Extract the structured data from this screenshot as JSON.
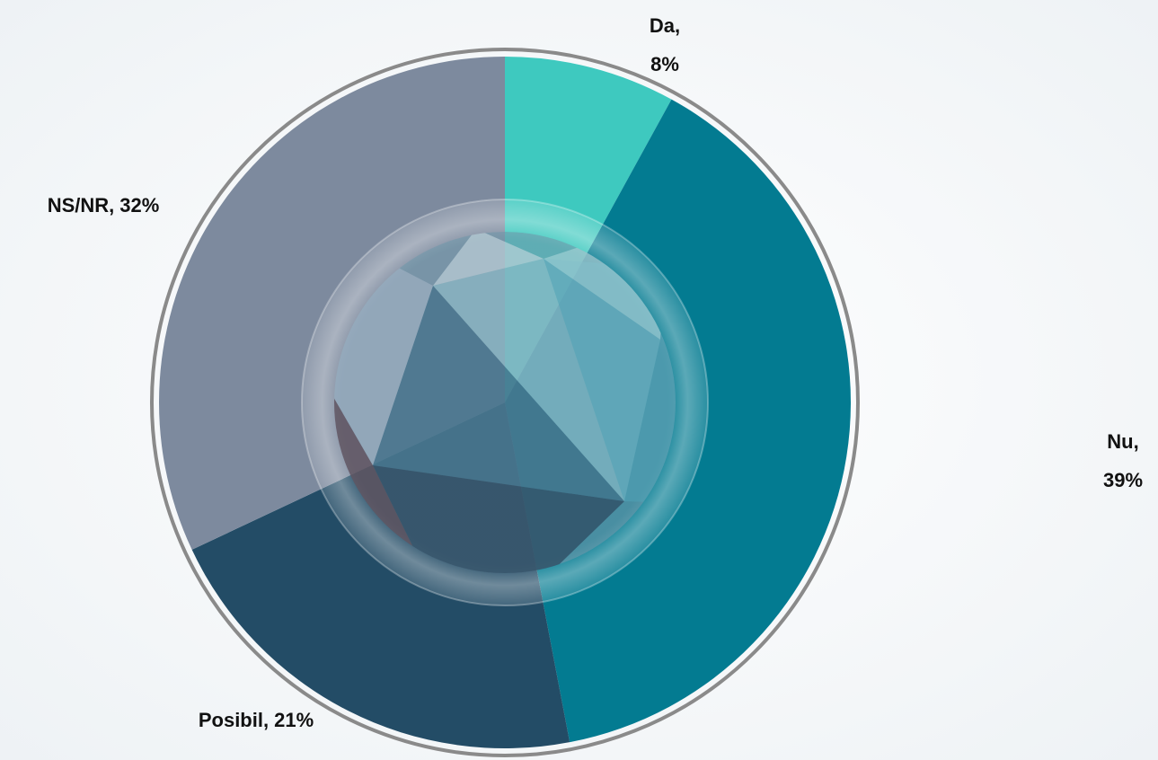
{
  "chart_data": {
    "type": "pie",
    "categories": [
      "Da,",
      "Nu,",
      "Posibil,",
      "NS/NR,"
    ],
    "values": [
      8,
      39,
      21,
      32
    ],
    "value_labels": [
      "8%",
      "39%",
      "21%",
      "32%"
    ],
    "colors": [
      "#3ec9bf",
      "#037b91",
      "#234c66",
      "#7d8a9e"
    ]
  }
}
